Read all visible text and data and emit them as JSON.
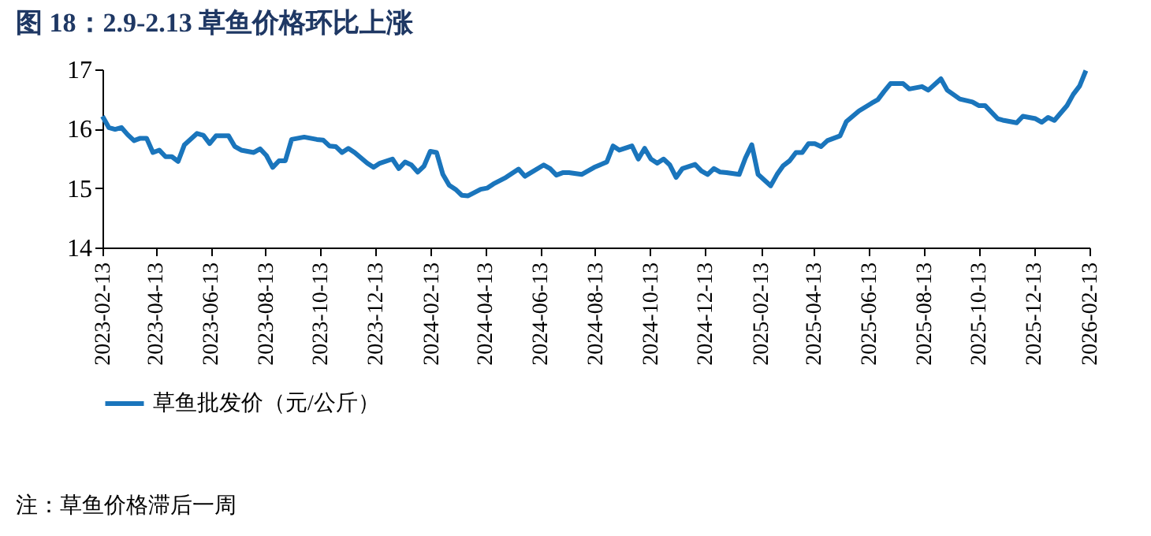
{
  "chart_data": {
    "type": "line",
    "title": "图 18：2.9-2.13 草鱼价格环比上涨",
    "x": [
      "2023-02-13",
      "2023-02-20",
      "2023-02-27",
      "2023-03-06",
      "2023-03-13",
      "2023-03-20",
      "2023-03-27",
      "2023-04-03",
      "2023-04-10",
      "2023-04-17",
      "2023-04-24",
      "2023-05-01",
      "2023-05-08",
      "2023-05-15",
      "2023-05-29",
      "2023-06-05",
      "2023-06-12",
      "2023-06-19",
      "2023-07-03",
      "2023-07-10",
      "2023-07-17",
      "2023-07-31",
      "2023-08-07",
      "2023-08-14",
      "2023-08-21",
      "2023-08-28",
      "2023-09-04",
      "2023-09-11",
      "2023-09-25",
      "2023-10-09",
      "2023-10-16",
      "2023-10-23",
      "2023-10-30",
      "2023-11-06",
      "2023-11-13",
      "2023-11-20",
      "2023-12-04",
      "2023-12-11",
      "2023-12-18",
      "2024-01-01",
      "2024-01-08",
      "2024-01-15",
      "2024-01-22",
      "2024-01-29",
      "2024-02-05",
      "2024-02-12",
      "2024-02-19",
      "2024-02-26",
      "2024-03-04",
      "2024-03-11",
      "2024-03-18",
      "2024-03-25",
      "2024-04-08",
      "2024-04-15",
      "2024-04-22",
      "2024-05-06",
      "2024-05-20",
      "2024-05-27",
      "2024-06-17",
      "2024-06-24",
      "2024-07-01",
      "2024-07-08",
      "2024-07-15",
      "2024-07-29",
      "2024-08-12",
      "2024-08-26",
      "2024-09-02",
      "2024-09-09",
      "2024-09-23",
      "2024-09-30",
      "2024-10-07",
      "2024-10-14",
      "2024-10-21",
      "2024-10-28",
      "2024-11-04",
      "2024-11-11",
      "2024-11-18",
      "2024-12-02",
      "2024-12-09",
      "2024-12-16",
      "2024-12-23",
      "2024-12-30",
      "2025-01-06",
      "2025-01-20",
      "2025-01-27",
      "2025-02-03",
      "2025-02-10",
      "2025-02-24",
      "2025-03-03",
      "2025-03-10",
      "2025-03-17",
      "2025-03-24",
      "2025-03-31",
      "2025-04-07",
      "2025-04-14",
      "2025-04-21",
      "2025-04-28",
      "2025-05-12",
      "2025-05-19",
      "2025-06-02",
      "2025-06-16",
      "2025-06-23",
      "2025-06-30",
      "2025-07-07",
      "2025-07-21",
      "2025-07-28",
      "2025-08-11",
      "2025-08-18",
      "2025-09-01",
      "2025-09-08",
      "2025-09-22",
      "2025-10-06",
      "2025-10-13",
      "2025-10-20",
      "2025-11-03",
      "2025-11-10",
      "2025-11-24",
      "2025-12-01",
      "2025-12-15",
      "2025-12-22",
      "2025-12-29",
      "2026-01-05",
      "2026-01-19",
      "2026-01-26",
      "2026-02-02",
      "2026-02-09"
    ],
    "series": [
      {
        "name": "草鱼批发价（元/公斤）",
        "color": "#1a75bc",
        "values": [
          16.21,
          16.02,
          15.99,
          16.02,
          15.9,
          15.8,
          15.84,
          15.84,
          15.6,
          15.64,
          15.53,
          15.53,
          15.45,
          15.73,
          15.92,
          15.89,
          15.75,
          15.88,
          15.88,
          15.7,
          15.64,
          15.6,
          15.66,
          15.55,
          15.35,
          15.46,
          15.46,
          15.82,
          15.86,
          15.82,
          15.81,
          15.71,
          15.7,
          15.6,
          15.67,
          15.6,
          15.42,
          15.35,
          15.42,
          15.49,
          15.33,
          15.44,
          15.39,
          15.27,
          15.37,
          15.62,
          15.6,
          15.23,
          15.05,
          14.98,
          14.88,
          14.87,
          14.98,
          15.0,
          15.07,
          15.18,
          15.32,
          15.2,
          15.39,
          15.33,
          15.22,
          15.26,
          15.26,
          15.23,
          15.35,
          15.44,
          15.71,
          15.64,
          15.71,
          15.49,
          15.67,
          15.49,
          15.42,
          15.49,
          15.39,
          15.18,
          15.33,
          15.4,
          15.29,
          15.23,
          15.33,
          15.27,
          15.26,
          15.23,
          15.51,
          15.73,
          15.23,
          15.04,
          15.23,
          15.38,
          15.46,
          15.6,
          15.6,
          15.75,
          15.75,
          15.7,
          15.8,
          15.88,
          16.12,
          16.3,
          16.43,
          16.49,
          16.63,
          16.76,
          16.76,
          16.67,
          16.71,
          16.65,
          16.84,
          16.65,
          16.5,
          16.45,
          16.39,
          16.39,
          16.17,
          16.14,
          16.1,
          16.21,
          16.17,
          16.11,
          16.19,
          16.14,
          16.39,
          16.58,
          16.72,
          16.98
        ]
      }
    ],
    "xlim": [
      "2023-02-13",
      "2026-02-13"
    ],
    "xticks": [
      "2023-02-13",
      "2023-04-13",
      "2023-06-13",
      "2023-08-13",
      "2023-10-13",
      "2023-12-13",
      "2024-02-13",
      "2024-04-13",
      "2024-06-13",
      "2024-08-13",
      "2024-10-13",
      "2024-12-13",
      "2025-02-13",
      "2025-04-13",
      "2025-06-13",
      "2025-08-13",
      "2025-10-13",
      "2025-12-13",
      "2026-02-13"
    ],
    "ylim": [
      14,
      17
    ],
    "yticks": [
      14,
      15,
      16,
      17
    ],
    "grid": false,
    "legend": "bottom",
    "annotations": [
      "注：草鱼价格滞后一周"
    ]
  }
}
